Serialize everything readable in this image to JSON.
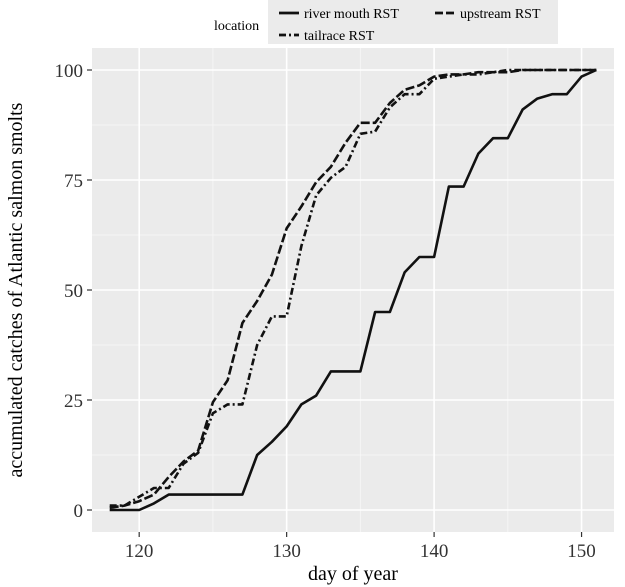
{
  "chart_data": {
    "type": "line",
    "title": "",
    "xlabel": "day of year",
    "ylabel": "accumulated catches of Atlantic salmon smolts",
    "xlim": [
      116.8,
      152.2
    ],
    "ylim": [
      -5,
      105
    ],
    "xticks": [
      120,
      130,
      140,
      150
    ],
    "yticks": [
      0,
      25,
      50,
      75,
      100
    ],
    "grid": true,
    "legend_position": "top",
    "legend_title": "location",
    "series": [
      {
        "name": "river mouth RST",
        "style": "solid",
        "x": [
          118,
          120,
          121,
          122,
          123,
          124,
          125,
          126,
          127,
          128,
          129,
          130,
          131,
          132,
          133,
          134,
          135,
          136,
          137,
          138,
          139,
          140,
          141,
          142,
          143,
          144,
          145,
          146,
          147,
          148,
          149,
          150,
          151
        ],
        "y": [
          0,
          0,
          1.5,
          3.5,
          3.5,
          3.5,
          3.5,
          3.5,
          3.5,
          12.5,
          15.5,
          19,
          24,
          26,
          31.5,
          31.5,
          31.5,
          45,
          45,
          54,
          57.5,
          57.5,
          73.5,
          73.5,
          81,
          84.5,
          84.5,
          91,
          93.5,
          94.5,
          94.5,
          98.5,
          100
        ]
      },
      {
        "name": "upstream RST",
        "style": "longdash",
        "x": [
          118,
          119,
          120,
          121,
          122,
          123,
          124,
          125,
          126,
          127,
          128,
          129,
          130,
          131,
          132,
          133,
          134,
          135,
          136,
          137,
          138,
          139,
          140,
          141,
          142,
          143,
          144,
          145,
          146,
          147,
          148,
          149,
          150,
          151
        ],
        "y": [
          0.5,
          1,
          2,
          3.5,
          7.5,
          11,
          13.5,
          24.5,
          29.5,
          42.5,
          47.5,
          53.5,
          64,
          69,
          74.5,
          78,
          83.5,
          88,
          88,
          92.5,
          95.5,
          96.5,
          98.5,
          99,
          99,
          99.5,
          99.5,
          99.5,
          100,
          100,
          100,
          100,
          100,
          100
        ]
      },
      {
        "name": "tailrace RST",
        "style": "dashdot",
        "x": [
          118,
          119,
          120,
          121,
          122,
          123,
          124,
          125,
          126,
          127,
          128,
          129,
          130,
          131,
          132,
          133,
          134,
          135,
          136,
          137,
          138,
          139,
          140,
          141,
          142,
          143,
          144,
          145,
          146,
          147,
          148,
          149,
          150,
          151
        ],
        "y": [
          1,
          1,
          3,
          5,
          5,
          10.5,
          13,
          22,
          24,
          24,
          37.5,
          44,
          44,
          60,
          71.5,
          75.5,
          78,
          85.5,
          86,
          91.5,
          94.5,
          94.5,
          98,
          98.5,
          99,
          99,
          99.5,
          100,
          100,
          100,
          100,
          100,
          100,
          100
        ]
      }
    ]
  }
}
